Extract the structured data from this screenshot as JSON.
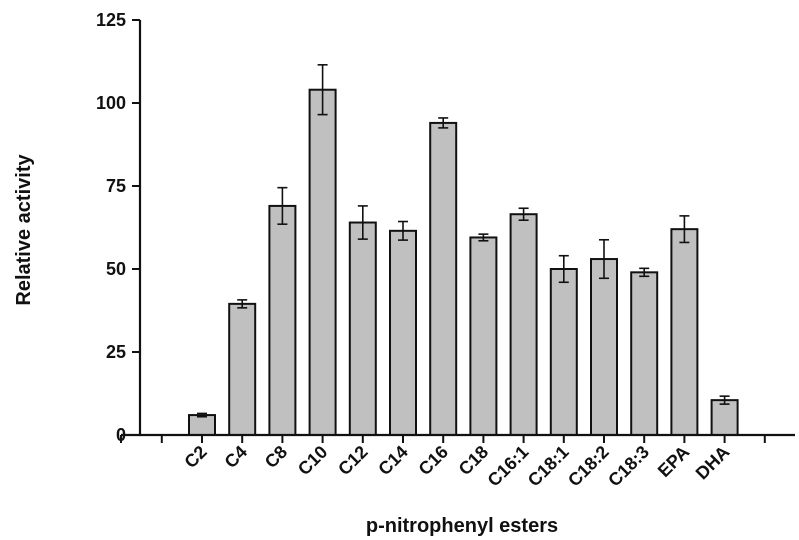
{
  "chart_data": {
    "type": "bar",
    "categories": [
      "C2",
      "C4",
      "C8",
      "C10",
      "C12",
      "C14",
      "C16",
      "C18",
      "C16:1",
      "C18:1",
      "C18:2",
      "C18:3",
      "EPA",
      "DHA"
    ],
    "values": [
      6.0,
      39.5,
      69.0,
      104.0,
      64.0,
      61.5,
      94.0,
      59.5,
      66.5,
      50.0,
      53.0,
      49.0,
      62.0,
      10.5
    ],
    "errors": [
      0.5,
      1.2,
      5.5,
      7.5,
      5.0,
      2.8,
      1.5,
      1.0,
      1.8,
      4.0,
      5.8,
      1.2,
      4.0,
      1.2
    ],
    "title": "",
    "xlabel": "p-nitrophenyl esters",
    "ylabel": "Relative activity",
    "ylim": [
      0,
      125
    ],
    "yticks": [
      0,
      25,
      50,
      75,
      100,
      125
    ],
    "grid": false,
    "bar_color": "#c0c0c0",
    "bar_edge_color": "#111111"
  }
}
